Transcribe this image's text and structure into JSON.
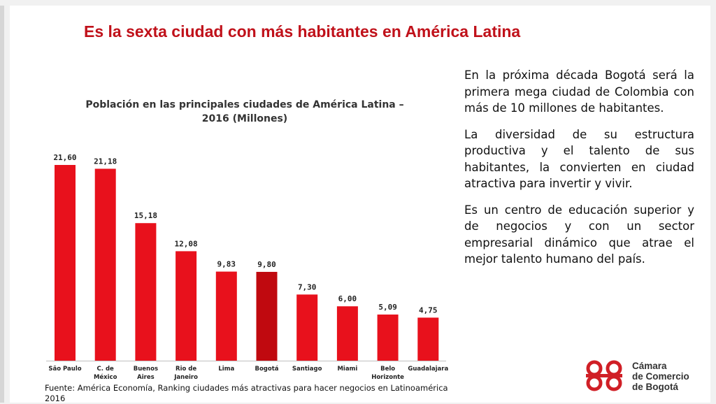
{
  "slide": {
    "title": "Es la sexta ciudad con más habitantes en América Latina",
    "body_paragraphs": [
      "En la próxima década Bogotá será la primera mega ciudad de Colombia con más de 10 millones de habitantes.",
      "La  diversidad de su estructura productiva y  el talento de sus habitantes, la convierten en ciudad atractiva para invertir y vivir.",
      "Es un centro de educación superior y de negocios y con un sector empresarial dinámico que atrae el mejor talento humano del país."
    ],
    "source": "Fuente: América Economía, Ranking ciudades más atractivas para hacer negocios en Latinoamérica 2016",
    "logo": {
      "line1": "Cámara",
      "line2": "de Comercio",
      "line3": "de Bogotá"
    }
  },
  "chart_data": {
    "type": "bar",
    "title_line1": "Población en las principales ciudades de América Latina –",
    "title_line2": "2016 (Millones)",
    "categories": [
      [
        "São Paulo"
      ],
      [
        "C. de",
        "México"
      ],
      [
        "Buenos",
        "Aires"
      ],
      [
        "Rio de",
        "Janeiro"
      ],
      [
        "Lima"
      ],
      [
        "Bogotá"
      ],
      [
        "Santiago"
      ],
      [
        "Miami"
      ],
      [
        "Belo",
        "Horizonte"
      ],
      [
        "Guadalajara"
      ]
    ],
    "values": [
      21.6,
      21.18,
      15.18,
      12.08,
      9.83,
      9.8,
      7.3,
      6.0,
      5.09,
      4.75
    ],
    "value_labels": [
      "21,60",
      "21,18",
      "15,18",
      "12,08",
      "9,83",
      "9,80",
      "7,30",
      "6,00",
      "5,09",
      "4,75"
    ],
    "highlight_index": 5,
    "colors": {
      "bar": "#e8111c",
      "highlight": "#c0090f",
      "title": "#c0111a"
    },
    "ylim": [
      0,
      23
    ],
    "xlabel": "",
    "ylabel": "",
    "grid": false,
    "legend": "none"
  }
}
